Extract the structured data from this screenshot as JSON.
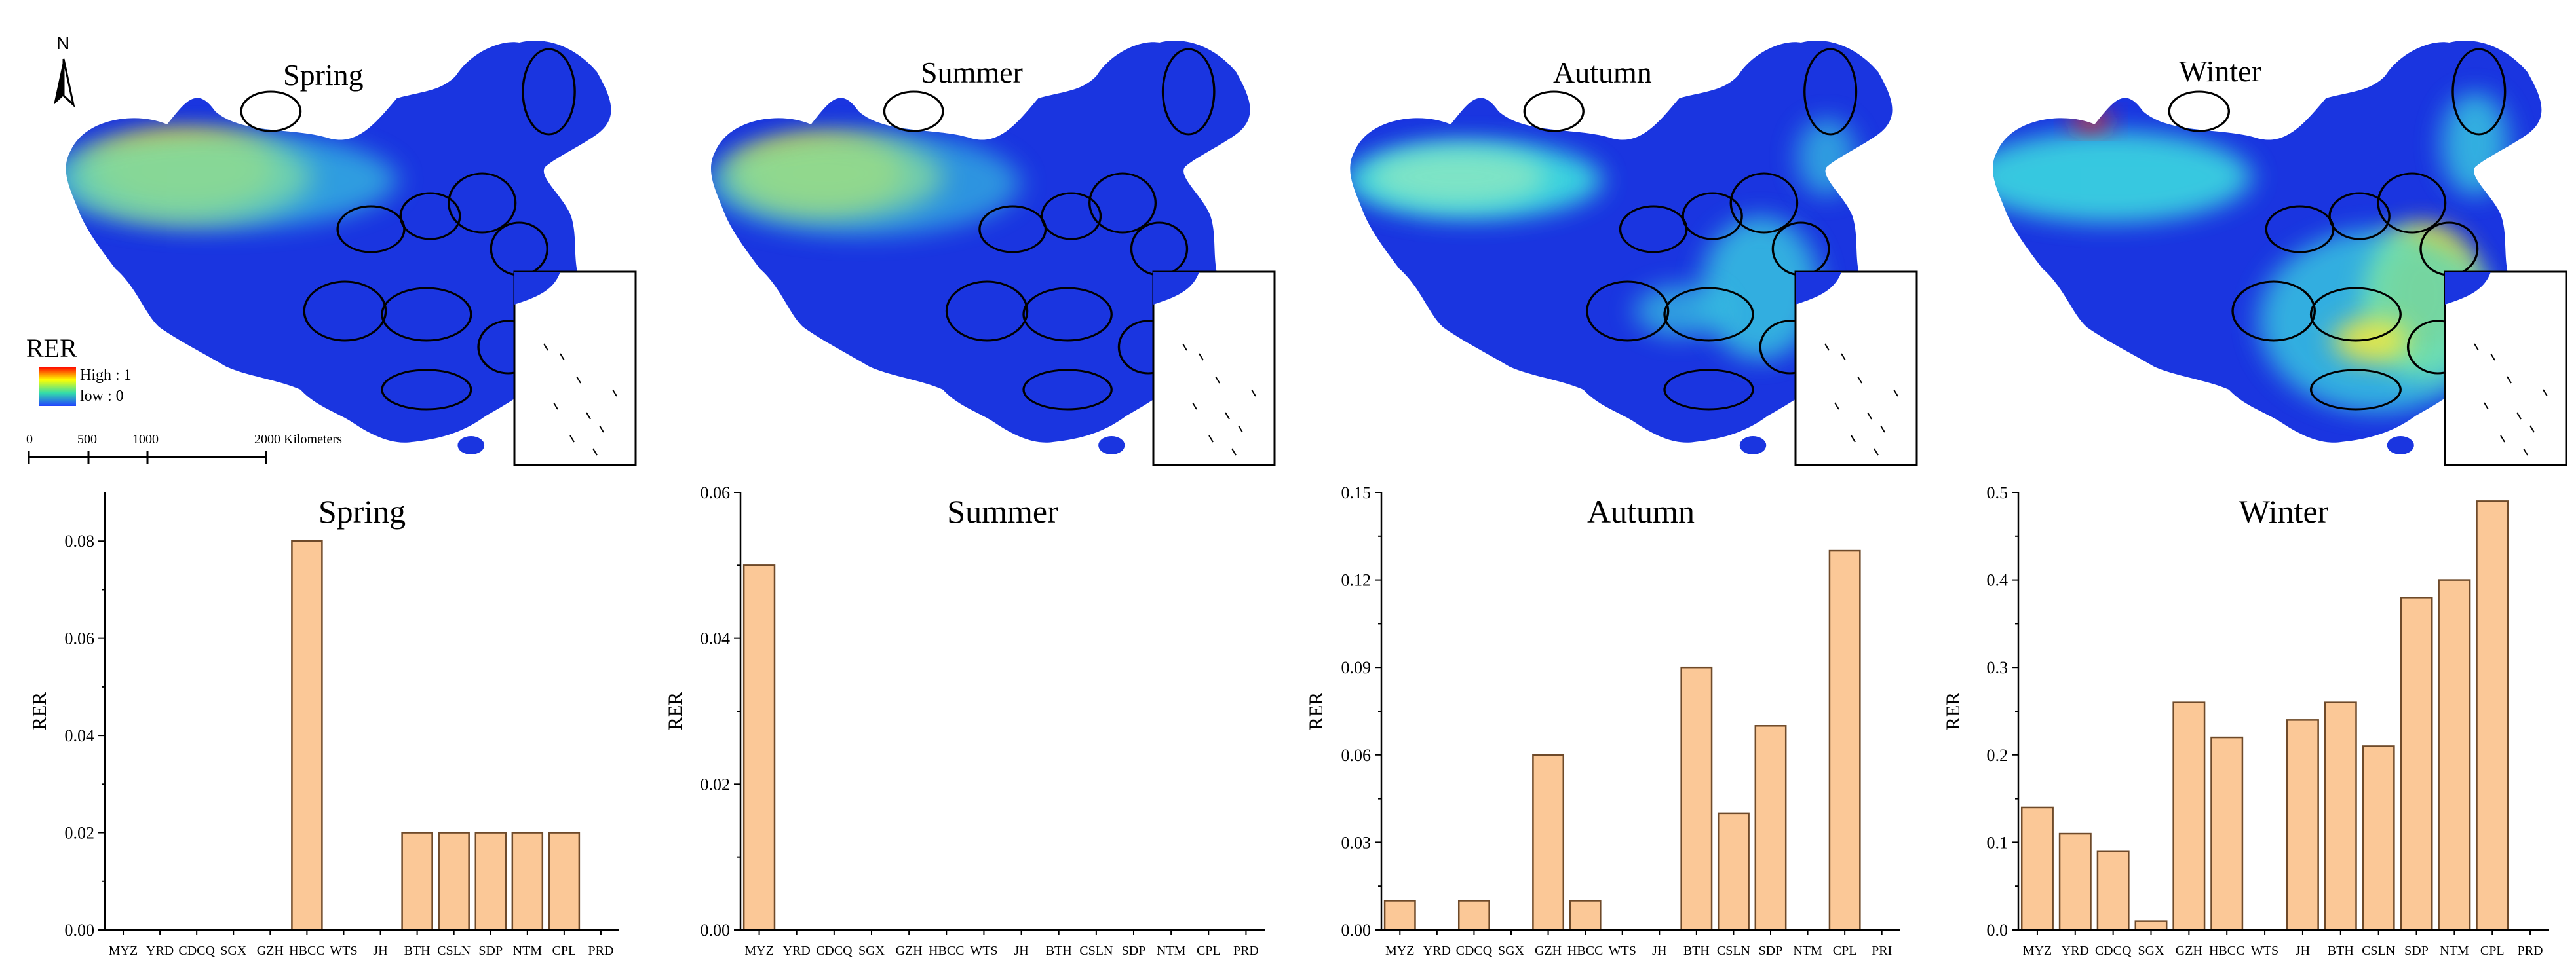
{
  "maps": {
    "titles": [
      "Spring",
      "Summer",
      "Autumn",
      "Winter"
    ],
    "legend": {
      "title": "RER",
      "high": "High : 1",
      "low": "low : 0"
    },
    "north": "N",
    "scale": {
      "ticks": [
        "0",
        "500",
        "1000",
        "2000 Kilometers"
      ]
    },
    "colors": {
      "base": "#1a35e0",
      "low": "#2244ff",
      "mid": "#3de2e0",
      "warm": "#f6e93a",
      "hot": "#ff6a00",
      "peak": "#ff2200"
    }
  },
  "chart_data": [
    {
      "type": "bar",
      "title": "Spring",
      "ylabel": "RER",
      "categories": [
        "MYZ",
        "YRD",
        "CDCQ",
        "SGX",
        "GZH",
        "HBCC",
        "WTS",
        "JH",
        "BTH",
        "CSLN",
        "SDP",
        "NTM",
        "CPL",
        "PRD"
      ],
      "values": [
        0,
        0,
        0,
        0,
        0,
        0.08,
        0,
        0,
        0.02,
        0.02,
        0.02,
        0.02,
        0.02,
        0
      ],
      "ylim": [
        0,
        0.09
      ],
      "yticks": [
        "0.00",
        "0.02",
        "0.04",
        "0.06",
        "0.08"
      ],
      "ytick_values": [
        0,
        0.02,
        0.04,
        0.06,
        0.08
      ],
      "bar_color": "#fbc897"
    },
    {
      "type": "bar",
      "title": "Summer",
      "ylabel": "RER",
      "categories": [
        "MYZ",
        "YRD",
        "CDCQ",
        "SGX",
        "GZH",
        "HBCC",
        "WTS",
        "JH",
        "BTH",
        "CSLN",
        "SDP",
        "NTM",
        "CPL",
        "PRD"
      ],
      "values": [
        0.05,
        0,
        0,
        0,
        0,
        0,
        0,
        0,
        0,
        0,
        0,
        0,
        0,
        0
      ],
      "ylim": [
        0,
        0.06
      ],
      "yticks": [
        "0.00",
        "0.02",
        "0.04",
        "0.06"
      ],
      "ytick_values": [
        0,
        0.02,
        0.04,
        0.06
      ],
      "bar_color": "#fbc897"
    },
    {
      "type": "bar",
      "title": "Autumn",
      "ylabel": "RER",
      "categories": [
        "MYZ",
        "YRD",
        "CDCQ",
        "SGX",
        "GZH",
        "HBCC",
        "WTS",
        "JH",
        "BTH",
        "CSLN",
        "SDP",
        "NTM",
        "CPL",
        "PRI"
      ],
      "values": [
        0.01,
        0,
        0.01,
        0,
        0.06,
        0.01,
        0,
        0,
        0.09,
        0.04,
        0.07,
        0,
        0.13,
        0
      ],
      "ylim": [
        0,
        0.15
      ],
      "yticks": [
        "0.00",
        "0.03",
        "0.06",
        "0.09",
        "0.12",
        "0.15"
      ],
      "ytick_values": [
        0,
        0.03,
        0.06,
        0.09,
        0.12,
        0.15
      ],
      "bar_color": "#fbc897"
    },
    {
      "type": "bar",
      "title": "Winter",
      "ylabel": "RER",
      "categories": [
        "MYZ",
        "YRD",
        "CDCQ",
        "SGX",
        "GZH",
        "HBCC",
        "WTS",
        "JH",
        "BTH",
        "CSLN",
        "SDP",
        "NTM",
        "CPL",
        "PRD"
      ],
      "values": [
        0.14,
        0.11,
        0.09,
        0.01,
        0.26,
        0.22,
        0,
        0.24,
        0.26,
        0.21,
        0.38,
        0.4,
        0.49,
        0
      ],
      "ylim": [
        0,
        0.5
      ],
      "yticks": [
        "0.0",
        "0.1",
        "0.2",
        "0.3",
        "0.4",
        "0.5"
      ],
      "ytick_values": [
        0,
        0.1,
        0.2,
        0.3,
        0.4,
        0.5
      ],
      "bar_color": "#fbc897"
    }
  ]
}
